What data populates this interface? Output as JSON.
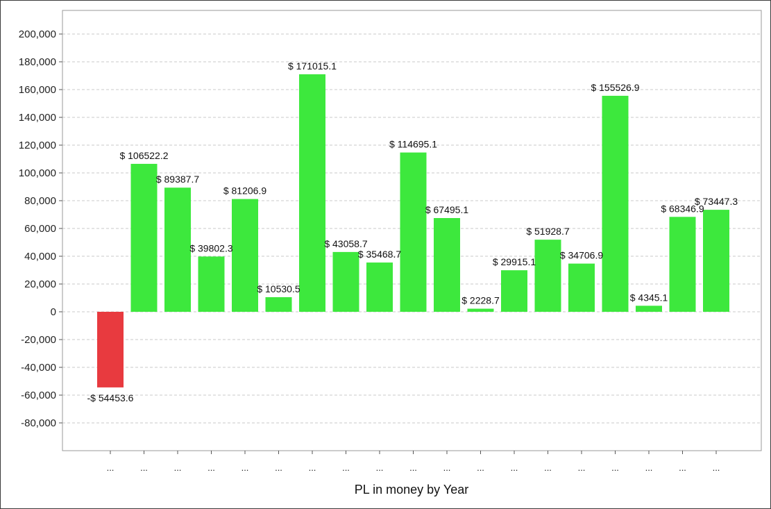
{
  "chart_data": {
    "type": "bar",
    "title": "",
    "xlabel": "PL in money by Year",
    "ylabel": "",
    "ylim": [
      -100000,
      215000
    ],
    "yticks": [
      200000,
      180000,
      160000,
      140000,
      120000,
      100000,
      80000,
      60000,
      40000,
      20000,
      0,
      -20000,
      -40000,
      -60000,
      -80000
    ],
    "ytick_labels": [
      "200,000",
      "180,000",
      "160,000",
      "140,000",
      "120,000",
      "100,000",
      "80,000",
      "60,000",
      "40,000",
      "20,000",
      "0",
      "-20,000",
      "-40,000",
      "-60,000",
      "-80,000"
    ],
    "grid": true,
    "categories": [
      "...",
      "...",
      "...",
      "...",
      "...",
      "...",
      "...",
      "...",
      "...",
      "...",
      "...",
      "...",
      "...",
      "...",
      "...",
      "...",
      "...",
      "...",
      "..."
    ],
    "values": [
      -54453.6,
      106522.2,
      89387.7,
      39802.3,
      81206.9,
      10530.5,
      171015.1,
      43058.7,
      35468.7,
      114695.1,
      67495.1,
      2228.7,
      29915.1,
      51928.7,
      34706.9,
      155526.9,
      4345.1,
      68346.9,
      73447.3
    ],
    "data_labels": [
      "-$ 54453.6",
      "$ 106522.2",
      "$ 89387.7",
      "$ 39802.3",
      "$ 81206.9",
      "$ 10530.5",
      "$ 171015.1",
      "$ 43058.7",
      "$ 35468.7",
      "$ 114695.1",
      "$ 67495.1",
      "$ 2228.7",
      "$ 29915.1",
      "$ 51928.7",
      "$ 34706.9",
      "$ 155526.9",
      "$ 4345.1",
      "$ 68346.9",
      "$ 73447.3"
    ],
    "colors": {
      "positive": "#3de83d",
      "negative": "#e83a3f",
      "grid": "#c8c8c8",
      "axis": "#9a9a9a"
    }
  }
}
